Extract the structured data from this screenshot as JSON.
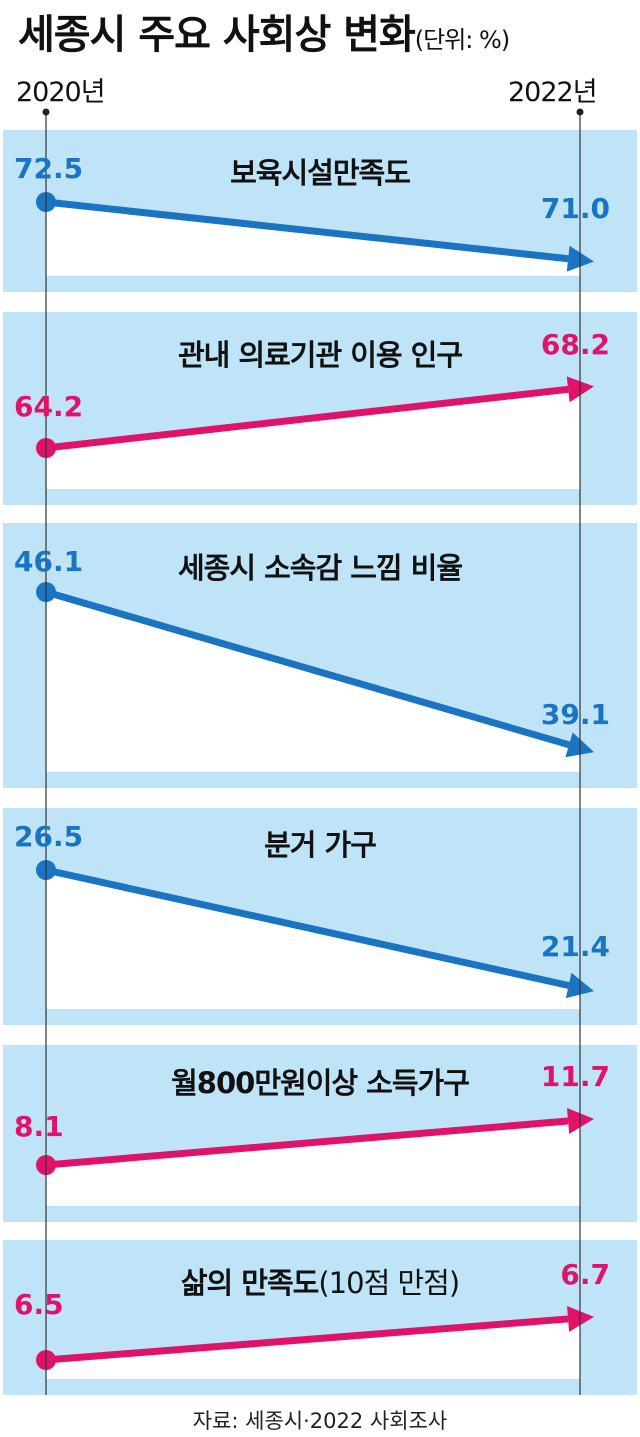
{
  "title": "세종시 주요 사회상 변화",
  "unit": "(단위: %)",
  "source": "자료: 세종시·2022 사회조사",
  "colors": {
    "decrease": "#1a74c2",
    "increase": "#e0136b",
    "panel_bg": "#bfe4f7"
  },
  "chart_data": {
    "type": "line",
    "x": [
      "2020년",
      "2022년"
    ],
    "series": [
      {
        "name": "보육시설만족도",
        "sub": "",
        "values": [
          "72.5",
          "71.0"
        ],
        "trend": "decrease"
      },
      {
        "name": "관내 의료기관 이용 인구",
        "sub": "",
        "values": [
          "64.2",
          "68.2"
        ],
        "trend": "increase"
      },
      {
        "name": "세종시 소속감 느낌 비율",
        "sub": "",
        "values": [
          "46.1",
          "39.1"
        ],
        "trend": "decrease"
      },
      {
        "name": "분거 가구",
        "sub": "",
        "values": [
          "26.5",
          "21.4"
        ],
        "trend": "decrease"
      },
      {
        "name": "월800만원이상 소득가구",
        "sub": "",
        "values": [
          "8.1",
          "11.7"
        ],
        "trend": "increase"
      },
      {
        "name": "삶의 만족도",
        "sub": "(10점 만점)",
        "values": [
          "6.5",
          "6.7"
        ],
        "trend": "increase"
      }
    ]
  }
}
